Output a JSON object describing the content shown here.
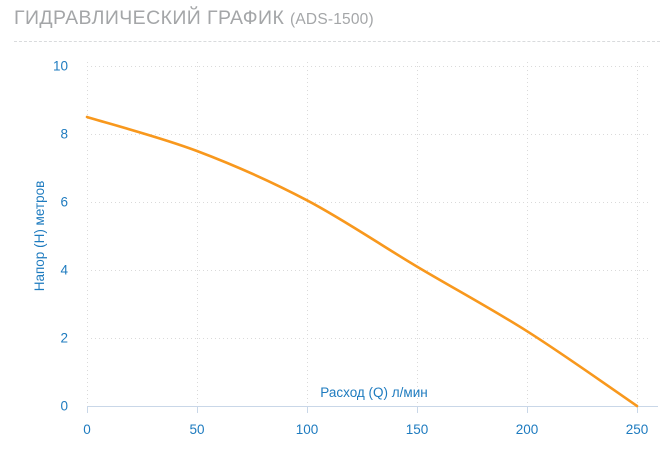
{
  "page": {
    "title": "ГИДРАВЛИЧЕСКИЙ ГРАФИК",
    "title_suffix": "(ADS-1500)"
  },
  "chart_data": {
    "type": "line",
    "title": "ГИДРАВЛИЧЕСКИЙ ГРАФИК (ADS-1500)",
    "xlabel": "Расход (Q) л/мин",
    "ylabel": "Напор (H) метров",
    "x": [
      0,
      50,
      100,
      150,
      200,
      250
    ],
    "series": [
      {
        "name": "ADS-1500",
        "values": [
          8.5,
          7.5,
          6.05,
          4.1,
          2.2,
          0
        ]
      }
    ],
    "xlim": [
      0,
      250
    ],
    "ylim": [
      0,
      10
    ],
    "x_ticks": [
      0,
      50,
      100,
      150,
      200,
      250
    ],
    "y_ticks": [
      0,
      2,
      4,
      6,
      8,
      10
    ],
    "grid": "dotted",
    "legend": "none",
    "colors": {
      "curve": "#f8981d",
      "tick_label": "#1e7bbf",
      "axis_title": "#1e7bbf",
      "axis_line": "#c9d7e8",
      "grid_line": "#dadada",
      "page_title": "#a4a6a8"
    }
  }
}
